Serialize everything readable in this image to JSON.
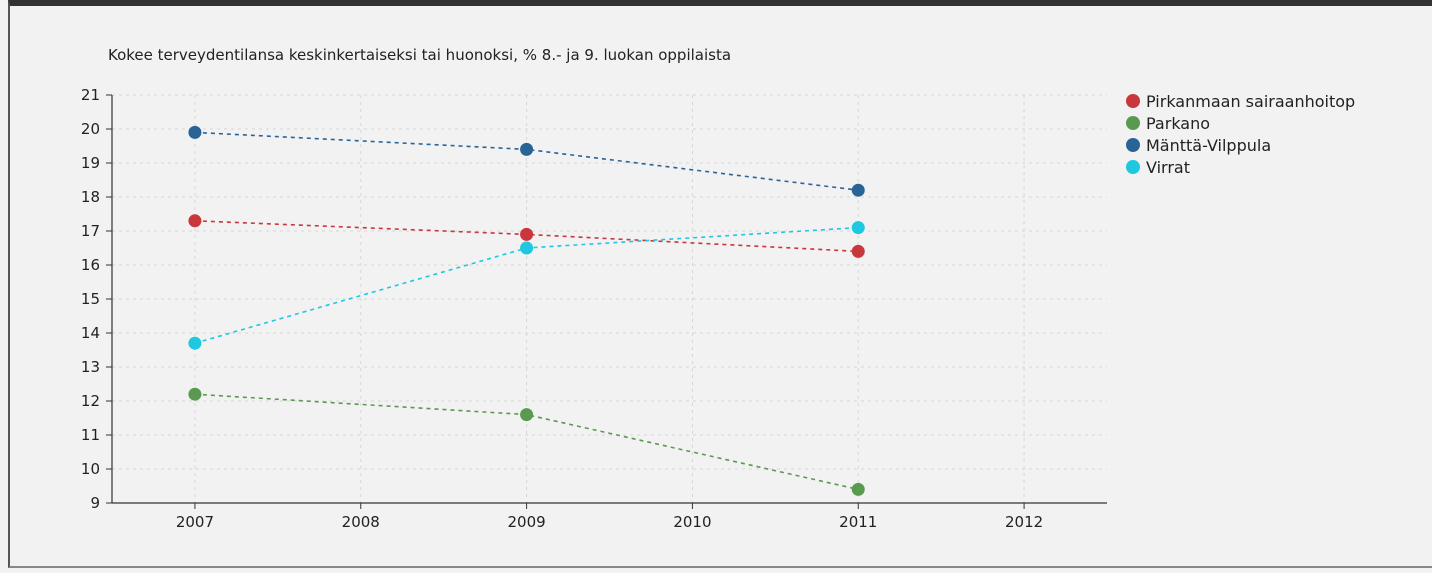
{
  "chart_data": {
    "type": "line",
    "title": "Kokee terveydentilansa keskinkertaiseksi tai huonoksi, % 8.- ja 9. luokan oppilaista",
    "x_ticks": [
      "2007",
      "2008",
      "2009",
      "2010",
      "2011",
      "2012"
    ],
    "xlim": [
      2006.5,
      2012.5
    ],
    "ylim": [
      9,
      21
    ],
    "y_ticks": [
      9,
      10,
      11,
      12,
      13,
      14,
      15,
      16,
      17,
      18,
      19,
      20,
      21
    ],
    "grid": true,
    "legend_position": "right",
    "series": [
      {
        "name": "Pirkanmaan sairaanhoitop",
        "color": "#c9363c",
        "points": [
          [
            2007,
            17.3
          ],
          [
            2009,
            16.9
          ],
          [
            2011,
            16.4
          ]
        ]
      },
      {
        "name": "Parkano",
        "color": "#5a9a50",
        "points": [
          [
            2007,
            12.2
          ],
          [
            2009,
            11.6
          ],
          [
            2011,
            9.4
          ]
        ]
      },
      {
        "name": "Mänttä-Vilppula",
        "color": "#2a6496",
        "points": [
          [
            2007,
            19.9
          ],
          [
            2009,
            19.4
          ],
          [
            2011,
            18.2
          ]
        ]
      },
      {
        "name": "Virrat",
        "color": "#1dc8e0",
        "points": [
          [
            2007,
            13.7
          ],
          [
            2009,
            16.5
          ],
          [
            2011,
            17.1
          ]
        ]
      }
    ]
  }
}
